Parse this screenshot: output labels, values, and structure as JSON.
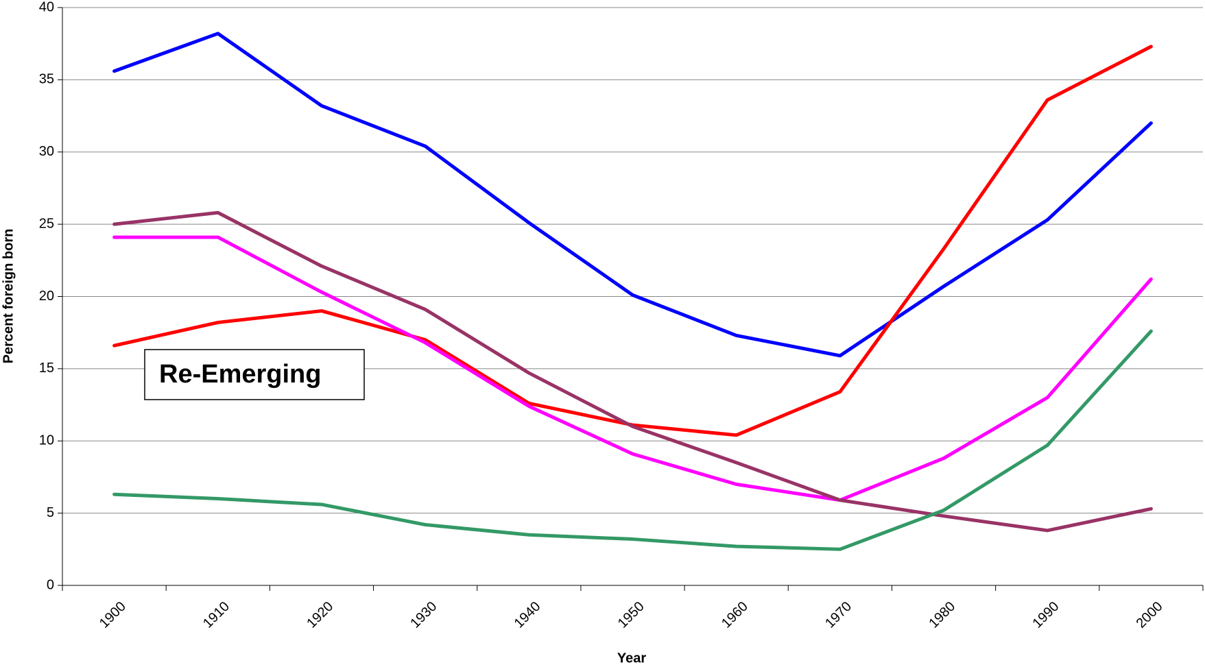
{
  "chart_data": {
    "type": "line",
    "x_label": "Year",
    "y_label": "Percent foreign born",
    "annotation": "Re-Emerging",
    "categories": [
      "1900",
      "1910",
      "1920",
      "1930",
      "1940",
      "1950",
      "1960",
      "1970",
      "1980",
      "1990",
      "2000"
    ],
    "series": [
      {
        "color": "#0000ff",
        "values": [
          35.6,
          38.2,
          33.2,
          30.4,
          25.1,
          20.1,
          17.3,
          15.9,
          20.7,
          25.3,
          32.0
        ]
      },
      {
        "color": "#ff0000",
        "values": [
          16.6,
          18.2,
          19.0,
          17.0,
          12.6,
          11.1,
          10.4,
          13.4,
          23.3,
          33.6,
          37.3
        ]
      },
      {
        "color": "#ff00ff",
        "values": [
          24.1,
          24.1,
          20.3,
          16.8,
          12.4,
          9.1,
          7.0,
          5.9,
          8.8,
          13.0,
          21.2
        ]
      },
      {
        "color": "#993366",
        "values": [
          25.0,
          25.8,
          22.1,
          19.1,
          14.7,
          11.0,
          8.5,
          5.9,
          4.8,
          3.8,
          5.3
        ]
      },
      {
        "color": "#339966",
        "values": [
          6.3,
          6.0,
          5.6,
          4.2,
          3.5,
          3.2,
          2.7,
          2.5,
          5.2,
          9.7,
          17.6
        ]
      }
    ],
    "ylim": [
      0,
      40
    ],
    "yticks": [
      0,
      5,
      10,
      15,
      20,
      25,
      30,
      35,
      40
    ],
    "grid": true
  }
}
